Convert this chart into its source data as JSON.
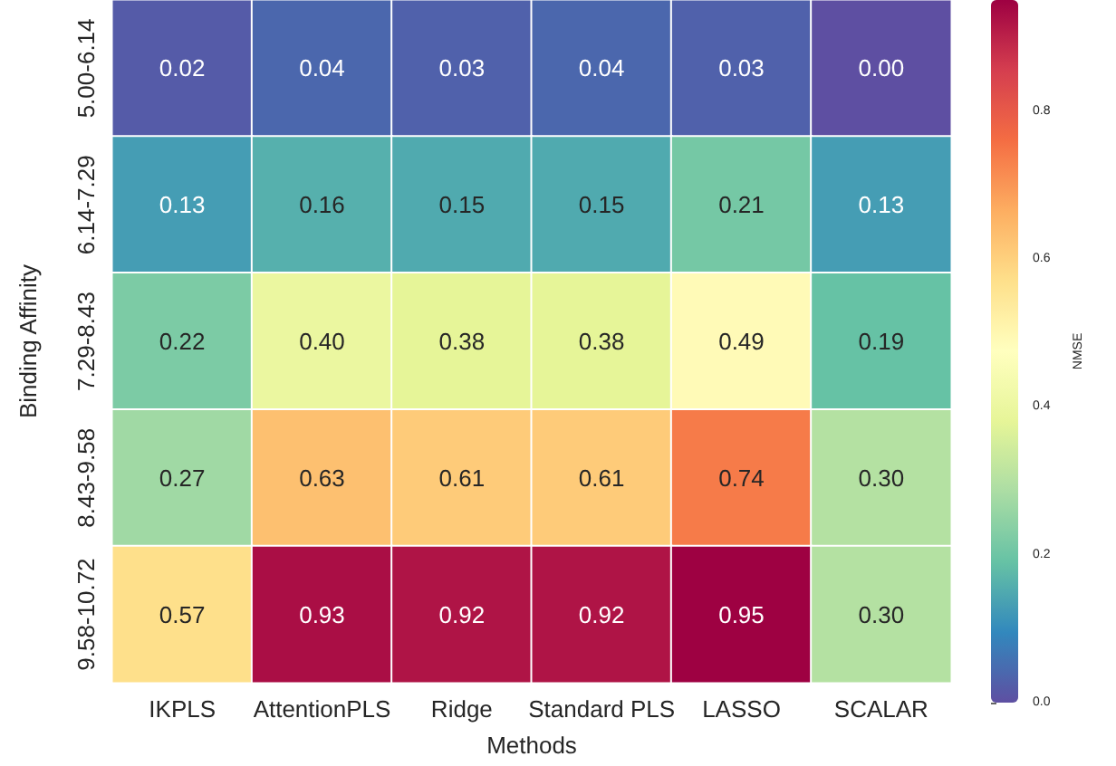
{
  "chart_data": {
    "type": "heatmap",
    "xlabel": "Methods",
    "ylabel": "Binding Affinity",
    "clabel": "NMSE",
    "categories": [
      "IKPLS",
      "AttentionPLS",
      "Ridge",
      "Standard PLS",
      "LASSO",
      "SCALAR"
    ],
    "y_categories": [
      "5.00-6.14",
      "6.14-7.29",
      "7.29-8.43",
      "8.43-9.58",
      "9.58-10.72"
    ],
    "cells": [
      [
        0.02,
        0.04,
        0.03,
        0.04,
        0.03,
        0.0
      ],
      [
        0.13,
        0.16,
        0.15,
        0.15,
        0.21,
        0.13
      ],
      [
        0.22,
        0.4,
        0.38,
        0.38,
        0.49,
        0.19
      ],
      [
        0.27,
        0.63,
        0.61,
        0.61,
        0.74,
        0.3
      ],
      [
        0.57,
        0.93,
        0.92,
        0.92,
        0.95,
        0.3
      ]
    ],
    "cell_labels": [
      [
        "0.02",
        "0.04",
        "0.03",
        "0.04",
        "0.03",
        "0.00"
      ],
      [
        "0.13",
        "0.16",
        "0.15",
        "0.15",
        "0.21",
        "0.13"
      ],
      [
        "0.22",
        "0.40",
        "0.38",
        "0.38",
        "0.49",
        "0.19"
      ],
      [
        "0.27",
        "0.63",
        "0.61",
        "0.61",
        "0.74",
        "0.30"
      ],
      [
        "0.57",
        "0.93",
        "0.92",
        "0.92",
        "0.95",
        "0.30"
      ]
    ],
    "data_labels": true,
    "clim": [
      0,
      0.95
    ],
    "cticks": [
      {
        "value": 0,
        "label": "0.0"
      },
      0.2,
      0.4,
      0.6,
      0.8
    ]
  }
}
